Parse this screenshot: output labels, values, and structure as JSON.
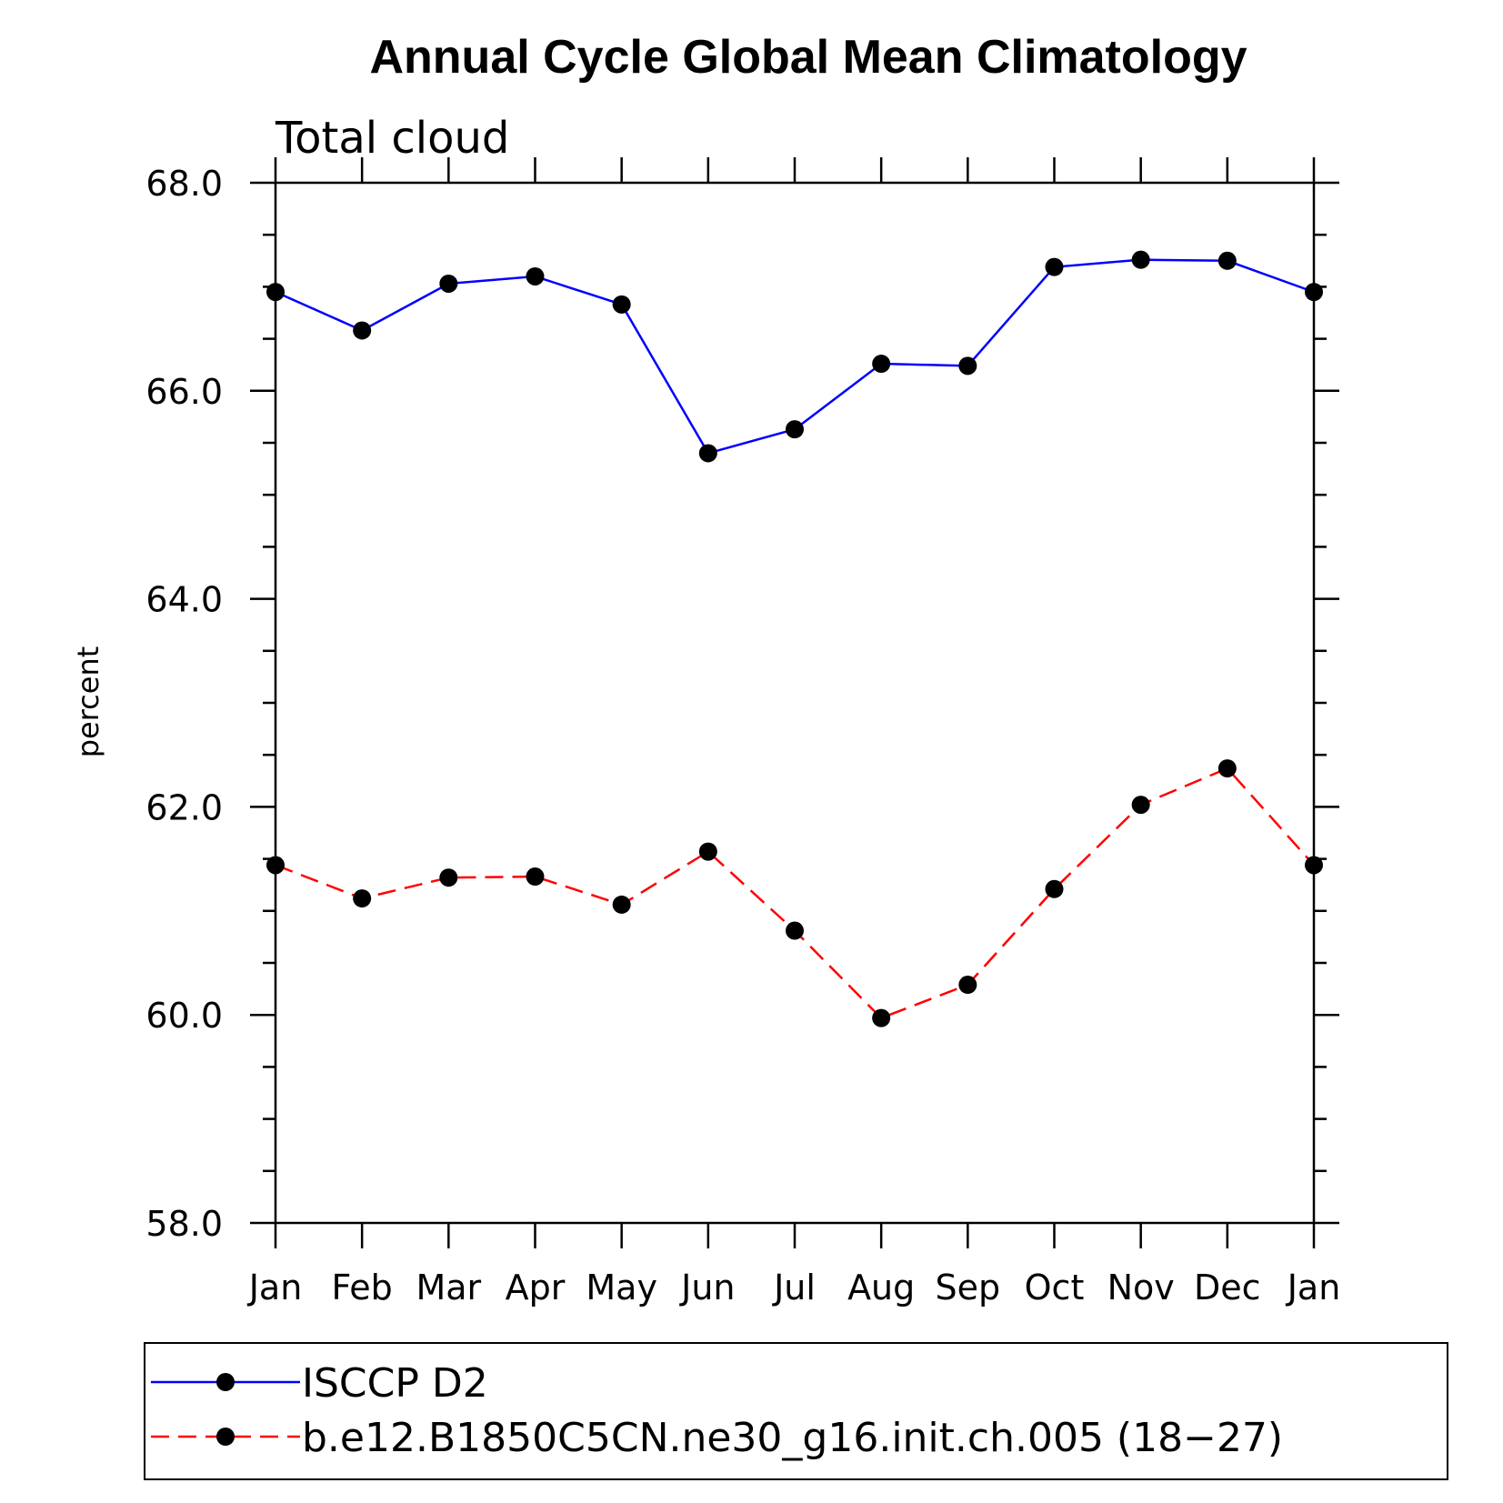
{
  "chart_data": {
    "type": "line",
    "title": "Annual Cycle Global Mean Climatology",
    "subtitle": "Total cloud",
    "xlabel": "",
    "ylabel": "percent",
    "categories": [
      "Jan",
      "Feb",
      "Mar",
      "Apr",
      "May",
      "Jun",
      "Jul",
      "Aug",
      "Sep",
      "Oct",
      "Nov",
      "Dec",
      "Jan"
    ],
    "ylim": [
      58.0,
      68.0
    ],
    "yticks": [
      "58.0",
      "60.0",
      "62.0",
      "64.0",
      "66.0",
      "68.0"
    ],
    "grid": false,
    "legend_position": "bottom",
    "series": [
      {
        "name": "ISCCP D2",
        "color": "#0000ff",
        "line_style": "solid",
        "marker": "filled-circle",
        "values": [
          66.95,
          66.58,
          67.03,
          67.1,
          66.83,
          65.4,
          65.63,
          66.26,
          66.24,
          67.19,
          67.26,
          67.25,
          66.95
        ]
      },
      {
        "name": "b.e12.B1850C5CN.ne30_g16.init.ch.005 (18−27)",
        "color": "#ff0000",
        "line_style": "dashed",
        "marker": "filled-circle",
        "values": [
          61.44,
          61.12,
          61.32,
          61.33,
          61.06,
          61.57,
          60.81,
          59.97,
          60.29,
          61.21,
          62.02,
          62.37,
          61.44
        ]
      }
    ]
  }
}
